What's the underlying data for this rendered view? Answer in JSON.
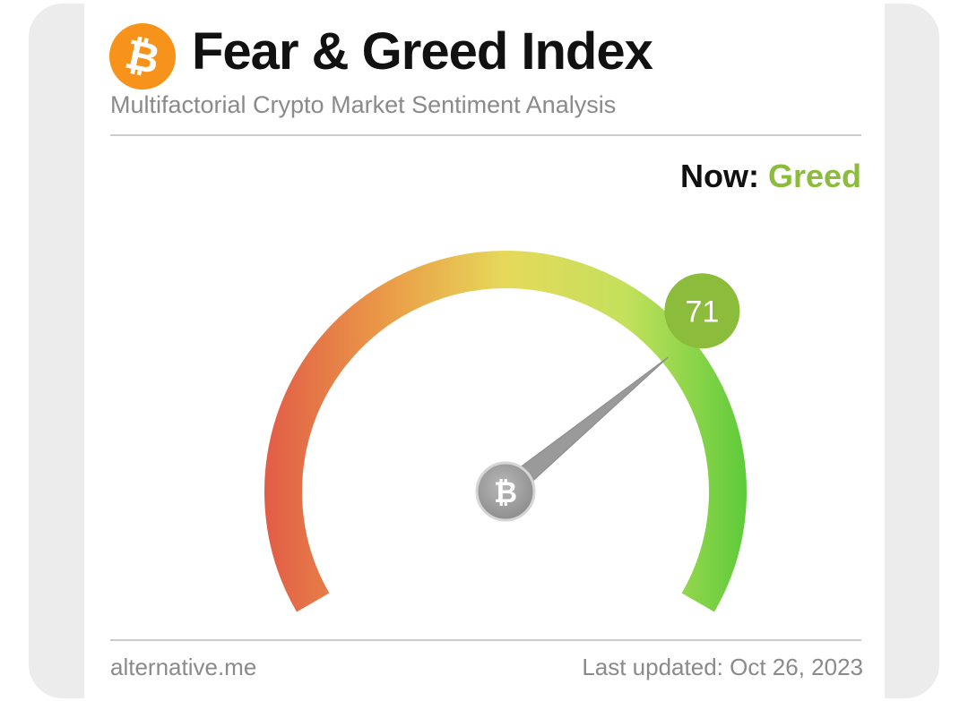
{
  "header": {
    "logo_glyph": "₿",
    "title": "Fear & Greed Index",
    "subtitle": "Multifactorial Crypto Market Sentiment Analysis"
  },
  "status": {
    "now_label": "Now:",
    "now_value": "Greed",
    "now_color": "#8cbc3b"
  },
  "gauge": {
    "value": 71,
    "value_label": "71",
    "min": 0,
    "max": 100,
    "badge_color": "#8cbc3b",
    "center_glyph": "₿",
    "gradient_colors": [
      "#e25c47",
      "#ea9f47",
      "#e6d95a",
      "#c4e05c",
      "#5ccb3a"
    ]
  },
  "footer": {
    "source": "alternative.me",
    "last_updated": "Last updated: Oct 26, 2023"
  }
}
